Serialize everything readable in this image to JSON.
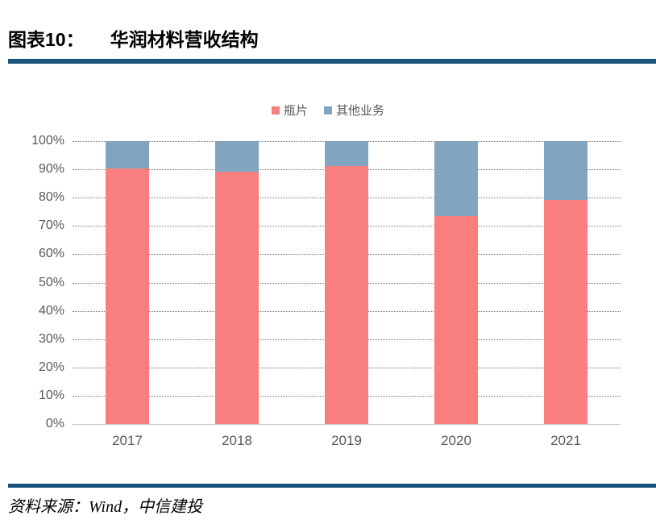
{
  "figure": {
    "label": "图表10：",
    "title": "华润材料营收结构"
  },
  "source": {
    "text": "资料来源：Wind，中信建投"
  },
  "colors": {
    "divider_rule": "#1A527E",
    "series_bottle_chip": "#F97F7F",
    "series_other": "#81A5C0",
    "axis_text": "#595959",
    "gridline": "#777777",
    "baseline": "#C8C8C8"
  },
  "chart_data": {
    "type": "bar",
    "stacked": true,
    "unit": "percent",
    "title": "华润材料营收结构",
    "categories": [
      "2017",
      "2018",
      "2019",
      "2020",
      "2021"
    ],
    "series": [
      {
        "name": "瓶片",
        "color": "#F97F7F",
        "values": [
          90.4,
          89.3,
          91.2,
          73.6,
          79.3
        ]
      },
      {
        "name": "其他业务",
        "color": "#81A5C0",
        "values": [
          9.6,
          10.7,
          8.8,
          26.4,
          20.7
        ]
      }
    ],
    "yticks": [
      "0%",
      "10%",
      "20%",
      "30%",
      "40%",
      "50%",
      "60%",
      "70%",
      "80%",
      "90%",
      "100%"
    ],
    "ylim": [
      0,
      100
    ],
    "xlabel": "",
    "ylabel": "",
    "grid": "horizontal-dotted",
    "legend_position": "top-center"
  }
}
